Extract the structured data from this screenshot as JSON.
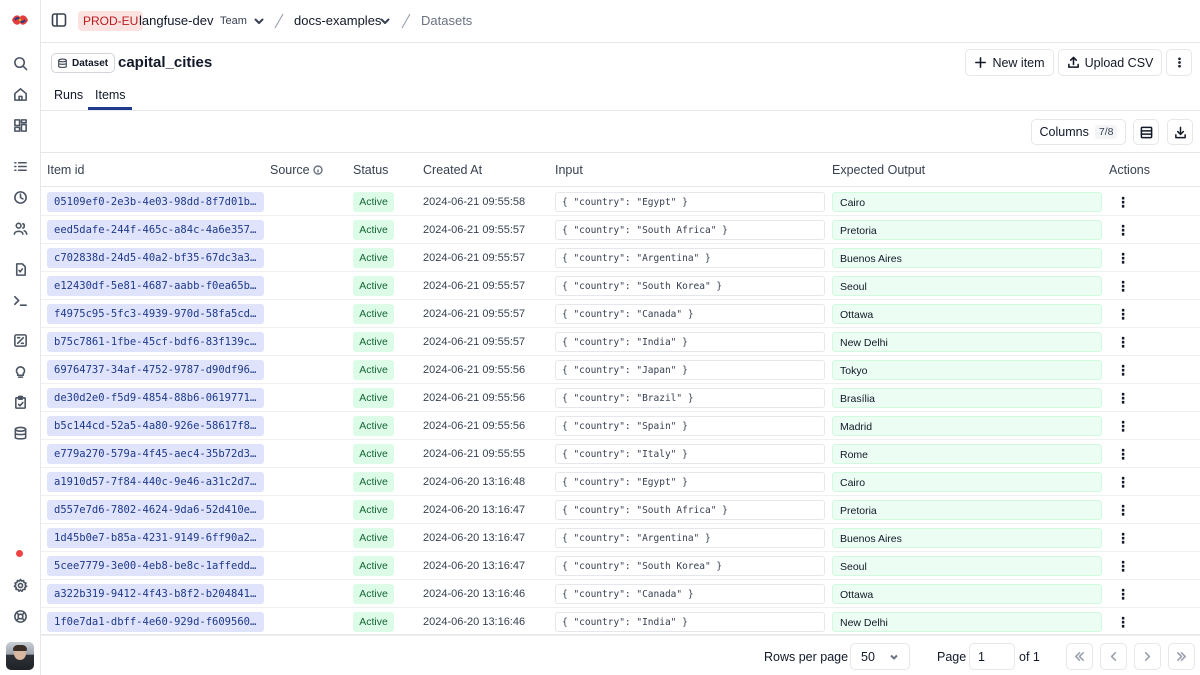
{
  "topbar": {
    "env": "PROD-EU",
    "org": "langfuse-dev",
    "team": "Team",
    "project": "docs-examples",
    "current": "Datasets"
  },
  "header": {
    "badge": "Dataset",
    "title": "capital_cities",
    "new_item": "New item",
    "upload_csv": "Upload CSV"
  },
  "tabs": [
    {
      "label": "Runs",
      "active": false
    },
    {
      "label": "Items",
      "active": true
    }
  ],
  "toolbar": {
    "columns_label": "Columns",
    "columns_count": "7/8"
  },
  "table": {
    "columns": [
      "Item id",
      "Source",
      "Status",
      "Created At",
      "Input",
      "Expected Output",
      "Actions"
    ],
    "rows": [
      {
        "id": "05109ef0-2e3b-4e03-98dd-8f7d01b61f...",
        "status": "Active",
        "created": "2024-06-21 09:55:58",
        "input": "{ \"country\": \"Egypt\" }",
        "output": "Cairo"
      },
      {
        "id": "eed5dafe-244f-465c-a84c-4a6e357251...",
        "status": "Active",
        "created": "2024-06-21 09:55:57",
        "input": "{ \"country\": \"South Africa\" }",
        "output": "Pretoria"
      },
      {
        "id": "c702838d-24d5-40a2-bf35-67dc3a3df...",
        "status": "Active",
        "created": "2024-06-21 09:55:57",
        "input": "{ \"country\": \"Argentina\" }",
        "output": "Buenos Aires"
      },
      {
        "id": "e12430df-5e81-4687-aabb-f0ea65be8a...",
        "status": "Active",
        "created": "2024-06-21 09:55:57",
        "input": "{ \"country\": \"South Korea\" }",
        "output": "Seoul"
      },
      {
        "id": "f4975c95-5fc3-4939-970d-58fa5cd48...",
        "status": "Active",
        "created": "2024-06-21 09:55:57",
        "input": "{ \"country\": \"Canada\" }",
        "output": "Ottawa"
      },
      {
        "id": "b75c7861-1fbe-45cf-bdf6-83f139c95539",
        "status": "Active",
        "created": "2024-06-21 09:55:57",
        "input": "{ \"country\": \"India\" }",
        "output": "New Delhi"
      },
      {
        "id": "69764737-34af-4752-9787-d90df9616...",
        "status": "Active",
        "created": "2024-06-21 09:55:56",
        "input": "{ \"country\": \"Japan\" }",
        "output": "Tokyo"
      },
      {
        "id": "de30d2e0-f5d9-4854-88b6-0619771b8...",
        "status": "Active",
        "created": "2024-06-21 09:55:56",
        "input": "{ \"country\": \"Brazil\" }",
        "output": "Brasília"
      },
      {
        "id": "b5c144cd-52a5-4a80-926e-58617f895...",
        "status": "Active",
        "created": "2024-06-21 09:55:56",
        "input": "{ \"country\": \"Spain\" }",
        "output": "Madrid"
      },
      {
        "id": "e779a270-579a-4f45-aec4-35b72d3bff...",
        "status": "Active",
        "created": "2024-06-21 09:55:55",
        "input": "{ \"country\": \"Italy\" }",
        "output": "Rome"
      },
      {
        "id": "a1910d57-7f84-440c-9e46-a31c2d7e21...",
        "status": "Active",
        "created": "2024-06-20 13:16:48",
        "input": "{ \"country\": \"Egypt\" }",
        "output": "Cairo"
      },
      {
        "id": "d557e7d6-7802-4624-9da6-52d410ea5...",
        "status": "Active",
        "created": "2024-06-20 13:16:47",
        "input": "{ \"country\": \"South Africa\" }",
        "output": "Pretoria"
      },
      {
        "id": "1d45b0e7-b85a-4231-9149-6ff90a294...",
        "status": "Active",
        "created": "2024-06-20 13:16:47",
        "input": "{ \"country\": \"Argentina\" }",
        "output": "Buenos Aires"
      },
      {
        "id": "5cee7779-3e00-4eb8-be8c-1affedd524...",
        "status": "Active",
        "created": "2024-06-20 13:16:47",
        "input": "{ \"country\": \"South Korea\" }",
        "output": "Seoul"
      },
      {
        "id": "a322b319-9412-4f43-b8f2-b20484127f...",
        "status": "Active",
        "created": "2024-06-20 13:16:46",
        "input": "{ \"country\": \"Canada\" }",
        "output": "Ottawa"
      },
      {
        "id": "1f0e7da1-dbff-4e60-929d-f6095602bb...",
        "status": "Active",
        "created": "2024-06-20 13:16:46",
        "input": "{ \"country\": \"India\" }",
        "output": "New Delhi"
      }
    ]
  },
  "pagination": {
    "rows_label": "Rows per page",
    "rows_value": "50",
    "page_label": "Page",
    "page_value": "1",
    "of_label": "of 1"
  },
  "icons": {
    "sidebar": [
      "search-icon",
      "home-icon",
      "dashboard-icon",
      "list-icon",
      "clock-icon",
      "users-icon",
      "file-icon",
      "terminal-icon",
      "evaluation-icon",
      "lightbulb-icon",
      "clipboard-icon",
      "database-icon",
      "settings-icon",
      "support-icon"
    ]
  }
}
